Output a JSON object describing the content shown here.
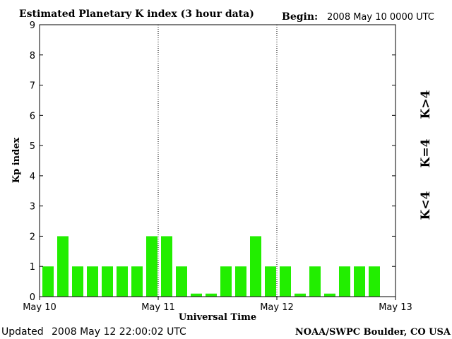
{
  "header": {
    "title": "Estimated Planetary K index (3 hour data)",
    "begin_label": "Begin:",
    "begin_value": "2008 May 10 0000 UTC"
  },
  "footer": {
    "updated_label": "Updated",
    "updated_value": "2008 May 12 22:00:02 UTC",
    "source": "NOAA/SWPC Boulder, CO USA"
  },
  "legend": [
    {
      "label": "K>4",
      "color": "#ff2200"
    },
    {
      "label": "K=4",
      "color": "#ffcc00"
    },
    {
      "label": "K<4",
      "color": "#22ee00"
    }
  ],
  "chart_data": {
    "type": "bar",
    "title": "Estimated Planetary K index (3 hour data)",
    "xlabel": "Universal Time",
    "ylabel": "Kp index",
    "ylim": [
      0,
      9
    ],
    "yticks": [
      "0",
      "1",
      "2",
      "3",
      "4",
      "5",
      "6",
      "7",
      "8",
      "9"
    ],
    "xticks": [
      "May 10",
      "May 11",
      "May 12",
      "May 13"
    ],
    "bar_color": "#22ee00",
    "values": [
      1,
      2,
      1,
      1,
      1,
      1,
      1,
      2,
      2,
      1,
      0.1,
      0.1,
      1,
      1,
      2,
      1,
      1,
      0.1,
      1,
      0.1,
      1,
      1,
      1
    ]
  }
}
